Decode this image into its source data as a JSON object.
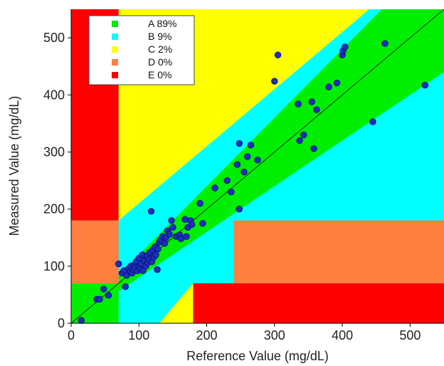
{
  "chart_data": {
    "type": "scatter",
    "title": "",
    "xlabel": "Reference Value (mg/dL)",
    "ylabel": "Measured Value (mg/dL)",
    "xlim": [
      0,
      550
    ],
    "ylim": [
      0,
      550
    ],
    "x_ticks": [
      0,
      100,
      200,
      300,
      400,
      500
    ],
    "y_ticks": [
      0,
      100,
      200,
      300,
      400,
      500
    ],
    "x_tick_labels": [
      "0",
      "100",
      "200",
      "300",
      "400",
      "500"
    ],
    "y_tick_labels": [
      "0",
      "100",
      "200",
      "300",
      "400",
      "500"
    ],
    "grid": false,
    "legend_position": "top-left",
    "zone_colors": {
      "A": "#00ee00",
      "B": "#00ffff",
      "C": "#ffff00",
      "D": "#ff7f40",
      "E": "#ff0000"
    },
    "point_color": "#1a2fbf",
    "point_stroke": "#0a0a60",
    "legend": [
      {
        "zone": "A",
        "label": "A 89%"
      },
      {
        "zone": "B",
        "label": "B 9%"
      },
      {
        "zone": "C",
        "label": "C 2%"
      },
      {
        "zone": "D",
        "label": "D 0%"
      },
      {
        "zone": "E",
        "label": "E 0%"
      }
    ],
    "identity_line": true,
    "points": [
      [
        15,
        5
      ],
      [
        38,
        42
      ],
      [
        42,
        42
      ],
      [
        48,
        60
      ],
      [
        55,
        49
      ],
      [
        70,
        104
      ],
      [
        75,
        88
      ],
      [
        78,
        92
      ],
      [
        80,
        64
      ],
      [
        82,
        84
      ],
      [
        85,
        96
      ],
      [
        87,
        90
      ],
      [
        88,
        100
      ],
      [
        90,
        88
      ],
      [
        92,
        94
      ],
      [
        93,
        102
      ],
      [
        95,
        98
      ],
      [
        96,
        108
      ],
      [
        98,
        92
      ],
      [
        100,
        100
      ],
      [
        100,
        114
      ],
      [
        102,
        96
      ],
      [
        103,
        104
      ],
      [
        105,
        120
      ],
      [
        106,
        92
      ],
      [
        108,
        110
      ],
      [
        110,
        100
      ],
      [
        112,
        118
      ],
      [
        113,
        106
      ],
      [
        115,
        112
      ],
      [
        116,
        124
      ],
      [
        118,
        196
      ],
      [
        119,
        108
      ],
      [
        120,
        128
      ],
      [
        122,
        116
      ],
      [
        124,
        134
      ],
      [
        125,
        120
      ],
      [
        127,
        94
      ],
      [
        128,
        130
      ],
      [
        130,
        142
      ],
      [
        132,
        146
      ],
      [
        135,
        152
      ],
      [
        138,
        140
      ],
      [
        140,
        150
      ],
      [
        142,
        162
      ],
      [
        145,
        156
      ],
      [
        148,
        180
      ],
      [
        150,
        168
      ],
      [
        155,
        152
      ],
      [
        160,
        155
      ],
      [
        162,
        148
      ],
      [
        168,
        182
      ],
      [
        170,
        152
      ],
      [
        172,
        168
      ],
      [
        176,
        180
      ],
      [
        178,
        173
      ],
      [
        190,
        210
      ],
      [
        194,
        175
      ],
      [
        212,
        237
      ],
      [
        230,
        250
      ],
      [
        236,
        230
      ],
      [
        245,
        278
      ],
      [
        248,
        200
      ],
      [
        248,
        315
      ],
      [
        255,
        265
      ],
      [
        260,
        292
      ],
      [
        265,
        312
      ],
      [
        275,
        286
      ],
      [
        300,
        424
      ],
      [
        305,
        470
      ],
      [
        335,
        384
      ],
      [
        337,
        320
      ],
      [
        343,
        330
      ],
      [
        355,
        388
      ],
      [
        358,
        306
      ],
      [
        362,
        374
      ],
      [
        380,
        414
      ],
      [
        392,
        421
      ],
      [
        400,
        470
      ],
      [
        401,
        477
      ],
      [
        404,
        484
      ],
      [
        445,
        353
      ],
      [
        463,
        490
      ],
      [
        522,
        417
      ]
    ]
  }
}
